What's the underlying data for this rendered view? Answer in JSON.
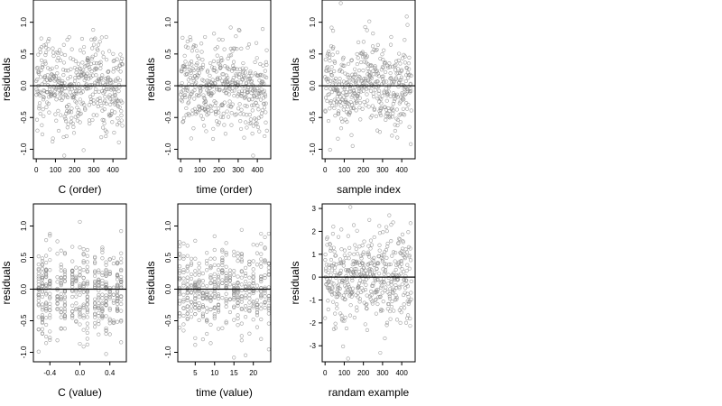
{
  "chart_data": [
    {
      "type": "scatter",
      "xlabel": "C (order)",
      "ylabel": "residuals",
      "xlim": [
        -15,
        470
      ],
      "ylim": [
        -1.15,
        1.35
      ],
      "xticks": [
        0,
        100,
        200,
        300,
        400
      ],
      "xtick_labels": [
        "0",
        "100",
        "200",
        "300",
        "400"
      ],
      "yticks": [
        -1.0,
        -0.5,
        0.0,
        0.5,
        1.0
      ],
      "ytick_labels": [
        "-1.0",
        "-0.5",
        "0.0",
        "0.5",
        "1.0"
      ],
      "ytick_label_rotation": "vertical",
      "reference_line_y": 0,
      "n_points": 451,
      "x_pattern": "index",
      "marker": "open-circle",
      "marker_color": "#808080",
      "grid": false,
      "legend": "none"
    },
    {
      "type": "scatter",
      "xlabel": "time (order)",
      "ylabel": "residuals",
      "xlim": [
        -15,
        470
      ],
      "ylim": [
        -1.15,
        1.35
      ],
      "xticks": [
        0,
        100,
        200,
        300,
        400
      ],
      "xtick_labels": [
        "0",
        "100",
        "200",
        "300",
        "400"
      ],
      "yticks": [
        -1.0,
        -0.5,
        0.0,
        0.5,
        1.0
      ],
      "ytick_labels": [
        "-1.0",
        "-0.5",
        "0.0",
        "0.5",
        "1.0"
      ],
      "ytick_label_rotation": "vertical",
      "reference_line_y": 0,
      "n_points": 451,
      "x_pattern": "index",
      "marker": "open-circle",
      "marker_color": "#808080",
      "grid": false,
      "legend": "none"
    },
    {
      "type": "scatter",
      "xlabel": "sample index",
      "ylabel": "residuals",
      "xlim": [
        -15,
        470
      ],
      "ylim": [
        -1.15,
        1.35
      ],
      "xticks": [
        0,
        100,
        200,
        300,
        400
      ],
      "xtick_labels": [
        "0",
        "100",
        "200",
        "300",
        "400"
      ],
      "yticks": [
        -1.0,
        -0.5,
        0.0,
        0.5,
        1.0
      ],
      "ytick_labels": [
        "-1.0",
        "-0.5",
        "0.0",
        "0.5",
        "1.0"
      ],
      "ytick_label_rotation": "vertical",
      "reference_line_y": 0,
      "n_points": 451,
      "x_pattern": "index",
      "marker": "open-circle",
      "marker_color": "#808080",
      "grid": false,
      "legend": "none"
    },
    {
      "type": "scatter",
      "xlabel": "C (value)",
      "ylabel": "residuals",
      "xlim": [
        -0.62,
        0.62
      ],
      "ylim": [
        -1.15,
        1.35
      ],
      "xticks": [
        -0.4,
        0.0,
        0.4
      ],
      "xtick_labels": [
        "-0.4",
        "0.0",
        "0.4"
      ],
      "yticks": [
        -1.0,
        -0.5,
        0.0,
        0.5,
        1.0
      ],
      "ytick_labels": [
        "-1.0",
        "-0.5",
        "0.0",
        "0.5",
        "1.0"
      ],
      "ytick_label_rotation": "vertical",
      "reference_line_y": 0,
      "n_points": 451,
      "x_pattern": "discrete",
      "x_levels": [
        -0.55,
        -0.5,
        -0.45,
        -0.4,
        -0.3,
        -0.25,
        -0.2,
        -0.1,
        -0.05,
        0.0,
        0.05,
        0.1,
        0.2,
        0.25,
        0.3,
        0.35,
        0.4,
        0.45,
        0.5,
        0.55
      ],
      "marker": "open-circle",
      "marker_color": "#808080",
      "grid": false,
      "legend": "none"
    },
    {
      "type": "scatter",
      "xlabel": "time (value)",
      "ylabel": "residuals",
      "xlim": [
        0.5,
        24.5
      ],
      "ylim": [
        -1.15,
        1.35
      ],
      "xticks": [
        5,
        10,
        15,
        20
      ],
      "xtick_labels": [
        "5",
        "10",
        "15",
        "20"
      ],
      "yticks": [
        -1.0,
        -0.5,
        0.0,
        0.5,
        1.0
      ],
      "ytick_labels": [
        "-1.0",
        "-0.5",
        "0.0",
        "0.5",
        "1.0"
      ],
      "ytick_label_rotation": "vertical",
      "reference_line_y": 0,
      "n_points": 451,
      "x_pattern": "discrete",
      "x_levels": [
        1,
        2,
        3,
        4,
        5,
        6,
        7,
        8,
        9,
        10,
        11,
        12,
        13,
        14,
        15,
        16,
        17,
        18,
        19,
        20,
        21,
        22,
        23,
        24
      ],
      "marker": "open-circle",
      "marker_color": "#808080",
      "grid": false,
      "legend": "none"
    },
    {
      "type": "scatter",
      "xlabel": "randam example",
      "ylabel": "residuals",
      "xlim": [
        -15,
        470
      ],
      "ylim": [
        -3.7,
        3.2
      ],
      "xticks": [
        0,
        100,
        200,
        300,
        400
      ],
      "xtick_labels": [
        "0",
        "100",
        "200",
        "300",
        "400"
      ],
      "yticks": [
        -3,
        -2,
        -1,
        0,
        1,
        2,
        3
      ],
      "ytick_labels": [
        "-3",
        "-2",
        "-1",
        "0",
        "1",
        "2",
        "3"
      ],
      "ytick_label_rotation": "horizontal",
      "reference_line_y": 0,
      "n_points": 451,
      "x_pattern": "index",
      "marker": "open-circle",
      "marker_color": "#808080",
      "grid": false,
      "legend": "none"
    }
  ]
}
